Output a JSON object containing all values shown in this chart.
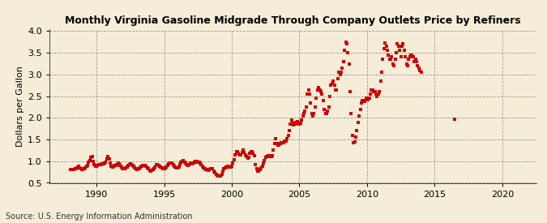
{
  "title": "Monthly Virginia Gasoline Midgrade Through Company Outlets Price by Refiners",
  "ylabel": "Dollars per Gallon",
  "source": "Source: U.S. Energy Information Administration",
  "xlim": [
    1986.5,
    2022.5
  ],
  "ylim": [
    0.5,
    4.05
  ],
  "xticks": [
    1990,
    1995,
    2000,
    2005,
    2010,
    2015,
    2020
  ],
  "yticks": [
    0.5,
    1.0,
    1.5,
    2.0,
    2.5,
    3.0,
    3.5,
    4.0
  ],
  "bg_color": "#f5edd8",
  "marker_color": "#cc0000",
  "data": [
    [
      1988.08,
      0.81
    ],
    [
      1988.17,
      0.8
    ],
    [
      1988.25,
      0.8
    ],
    [
      1988.33,
      0.8
    ],
    [
      1988.42,
      0.82
    ],
    [
      1988.5,
      0.83
    ],
    [
      1988.58,
      0.85
    ],
    [
      1988.67,
      0.88
    ],
    [
      1988.75,
      0.85
    ],
    [
      1988.83,
      0.83
    ],
    [
      1988.92,
      0.8
    ],
    [
      1989.0,
      0.8
    ],
    [
      1989.08,
      0.82
    ],
    [
      1989.17,
      0.84
    ],
    [
      1989.25,
      0.88
    ],
    [
      1989.33,
      0.91
    ],
    [
      1989.42,
      0.97
    ],
    [
      1989.5,
      1.01
    ],
    [
      1989.58,
      1.08
    ],
    [
      1989.67,
      1.1
    ],
    [
      1989.75,
      1.0
    ],
    [
      1989.83,
      0.93
    ],
    [
      1989.92,
      0.88
    ],
    [
      1990.0,
      0.88
    ],
    [
      1990.08,
      0.9
    ],
    [
      1990.17,
      0.92
    ],
    [
      1990.25,
      0.93
    ],
    [
      1990.33,
      0.93
    ],
    [
      1990.42,
      0.94
    ],
    [
      1990.5,
      0.94
    ],
    [
      1990.58,
      0.95
    ],
    [
      1990.67,
      0.98
    ],
    [
      1990.75,
      1.05
    ],
    [
      1990.83,
      1.1
    ],
    [
      1990.92,
      1.05
    ],
    [
      1991.0,
      0.95
    ],
    [
      1991.08,
      0.88
    ],
    [
      1991.17,
      0.87
    ],
    [
      1991.25,
      0.89
    ],
    [
      1991.33,
      0.9
    ],
    [
      1991.42,
      0.91
    ],
    [
      1991.5,
      0.93
    ],
    [
      1991.58,
      0.95
    ],
    [
      1991.67,
      0.94
    ],
    [
      1991.75,
      0.91
    ],
    [
      1991.83,
      0.87
    ],
    [
      1991.92,
      0.83
    ],
    [
      1992.0,
      0.82
    ],
    [
      1992.08,
      0.83
    ],
    [
      1992.17,
      0.84
    ],
    [
      1992.25,
      0.87
    ],
    [
      1992.33,
      0.9
    ],
    [
      1992.42,
      0.93
    ],
    [
      1992.5,
      0.94
    ],
    [
      1992.58,
      0.93
    ],
    [
      1992.67,
      0.91
    ],
    [
      1992.75,
      0.88
    ],
    [
      1992.83,
      0.84
    ],
    [
      1992.92,
      0.82
    ],
    [
      1993.0,
      0.81
    ],
    [
      1993.08,
      0.82
    ],
    [
      1993.17,
      0.83
    ],
    [
      1993.25,
      0.86
    ],
    [
      1993.33,
      0.88
    ],
    [
      1993.42,
      0.9
    ],
    [
      1993.5,
      0.9
    ],
    [
      1993.58,
      0.9
    ],
    [
      1993.67,
      0.88
    ],
    [
      1993.75,
      0.85
    ],
    [
      1993.83,
      0.83
    ],
    [
      1993.92,
      0.79
    ],
    [
      1994.0,
      0.78
    ],
    [
      1994.08,
      0.79
    ],
    [
      1994.17,
      0.81
    ],
    [
      1994.25,
      0.83
    ],
    [
      1994.33,
      0.87
    ],
    [
      1994.42,
      0.92
    ],
    [
      1994.5,
      0.93
    ],
    [
      1994.58,
      0.91
    ],
    [
      1994.67,
      0.89
    ],
    [
      1994.75,
      0.87
    ],
    [
      1994.83,
      0.84
    ],
    [
      1994.92,
      0.82
    ],
    [
      1995.0,
      0.82
    ],
    [
      1995.08,
      0.84
    ],
    [
      1995.17,
      0.87
    ],
    [
      1995.25,
      0.91
    ],
    [
      1995.33,
      0.94
    ],
    [
      1995.42,
      0.96
    ],
    [
      1995.5,
      0.96
    ],
    [
      1995.58,
      0.95
    ],
    [
      1995.67,
      0.93
    ],
    [
      1995.75,
      0.89
    ],
    [
      1995.83,
      0.87
    ],
    [
      1995.92,
      0.84
    ],
    [
      1996.0,
      0.85
    ],
    [
      1996.08,
      0.87
    ],
    [
      1996.17,
      0.92
    ],
    [
      1996.25,
      0.97
    ],
    [
      1996.33,
      1.0
    ],
    [
      1996.42,
      1.01
    ],
    [
      1996.5,
      0.98
    ],
    [
      1996.58,
      0.95
    ],
    [
      1996.67,
      0.93
    ],
    [
      1996.75,
      0.91
    ],
    [
      1996.83,
      0.92
    ],
    [
      1996.92,
      0.95
    ],
    [
      1997.0,
      0.95
    ],
    [
      1997.08,
      0.94
    ],
    [
      1997.17,
      0.96
    ],
    [
      1997.25,
      0.98
    ],
    [
      1997.33,
      0.99
    ],
    [
      1997.42,
      0.99
    ],
    [
      1997.5,
      0.98
    ],
    [
      1997.58,
      0.97
    ],
    [
      1997.67,
      0.96
    ],
    [
      1997.75,
      0.93
    ],
    [
      1997.83,
      0.88
    ],
    [
      1997.92,
      0.84
    ],
    [
      1998.0,
      0.82
    ],
    [
      1998.08,
      0.81
    ],
    [
      1998.17,
      0.8
    ],
    [
      1998.25,
      0.79
    ],
    [
      1998.33,
      0.8
    ],
    [
      1998.42,
      0.82
    ],
    [
      1998.5,
      0.82
    ],
    [
      1998.58,
      0.82
    ],
    [
      1998.67,
      0.78
    ],
    [
      1998.75,
      0.74
    ],
    [
      1998.83,
      0.7
    ],
    [
      1998.92,
      0.67
    ],
    [
      1999.0,
      0.66
    ],
    [
      1999.08,
      0.66
    ],
    [
      1999.17,
      0.66
    ],
    [
      1999.25,
      0.7
    ],
    [
      1999.33,
      0.78
    ],
    [
      1999.42,
      0.82
    ],
    [
      1999.5,
      0.85
    ],
    [
      1999.58,
      0.86
    ],
    [
      1999.67,
      0.88
    ],
    [
      1999.75,
      0.87
    ],
    [
      1999.83,
      0.87
    ],
    [
      1999.92,
      0.87
    ],
    [
      2000.0,
      0.88
    ],
    [
      2000.08,
      0.95
    ],
    [
      2000.17,
      1.03
    ],
    [
      2000.25,
      1.15
    ],
    [
      2000.33,
      1.22
    ],
    [
      2000.42,
      1.22
    ],
    [
      2000.5,
      1.18
    ],
    [
      2000.58,
      1.15
    ],
    [
      2000.67,
      1.14
    ],
    [
      2000.75,
      1.2
    ],
    [
      2000.83,
      1.25
    ],
    [
      2000.92,
      1.2
    ],
    [
      2001.0,
      1.15
    ],
    [
      2001.08,
      1.11
    ],
    [
      2001.17,
      1.07
    ],
    [
      2001.25,
      1.09
    ],
    [
      2001.33,
      1.18
    ],
    [
      2001.42,
      1.22
    ],
    [
      2001.5,
      1.22
    ],
    [
      2001.58,
      1.19
    ],
    [
      2001.67,
      1.12
    ],
    [
      2001.75,
      0.92
    ],
    [
      2001.83,
      0.83
    ],
    [
      2001.92,
      0.78
    ],
    [
      2002.0,
      0.77
    ],
    [
      2002.08,
      0.8
    ],
    [
      2002.17,
      0.84
    ],
    [
      2002.25,
      0.89
    ],
    [
      2002.33,
      0.96
    ],
    [
      2002.42,
      1.02
    ],
    [
      2002.5,
      1.08
    ],
    [
      2002.58,
      1.1
    ],
    [
      2002.67,
      1.13
    ],
    [
      2002.75,
      1.12
    ],
    [
      2002.83,
      1.1
    ],
    [
      2002.92,
      1.1
    ],
    [
      2003.0,
      1.12
    ],
    [
      2003.08,
      1.25
    ],
    [
      2003.17,
      1.4
    ],
    [
      2003.25,
      1.52
    ],
    [
      2003.33,
      1.41
    ],
    [
      2003.42,
      1.37
    ],
    [
      2003.5,
      1.37
    ],
    [
      2003.58,
      1.4
    ],
    [
      2003.67,
      1.42
    ],
    [
      2003.75,
      1.42
    ],
    [
      2003.83,
      1.42
    ],
    [
      2003.92,
      1.46
    ],
    [
      2004.0,
      1.47
    ],
    [
      2004.08,
      1.52
    ],
    [
      2004.17,
      1.6
    ],
    [
      2004.25,
      1.7
    ],
    [
      2004.33,
      1.85
    ],
    [
      2004.42,
      1.95
    ],
    [
      2004.5,
      1.88
    ],
    [
      2004.58,
      1.83
    ],
    [
      2004.67,
      1.85
    ],
    [
      2004.75,
      1.9
    ],
    [
      2004.83,
      1.92
    ],
    [
      2004.92,
      1.88
    ],
    [
      2005.0,
      1.85
    ],
    [
      2005.08,
      1.88
    ],
    [
      2005.17,
      1.95
    ],
    [
      2005.25,
      2.05
    ],
    [
      2005.33,
      2.1
    ],
    [
      2005.42,
      2.15
    ],
    [
      2005.5,
      2.25
    ],
    [
      2005.58,
      2.55
    ],
    [
      2005.67,
      2.65
    ],
    [
      2005.75,
      2.55
    ],
    [
      2005.83,
      2.35
    ],
    [
      2005.92,
      2.1
    ],
    [
      2006.0,
      2.05
    ],
    [
      2006.08,
      2.1
    ],
    [
      2006.17,
      2.25
    ],
    [
      2006.25,
      2.45
    ],
    [
      2006.33,
      2.65
    ],
    [
      2006.42,
      2.7
    ],
    [
      2006.5,
      2.65
    ],
    [
      2006.58,
      2.6
    ],
    [
      2006.67,
      2.55
    ],
    [
      2006.75,
      2.4
    ],
    [
      2006.83,
      2.2
    ],
    [
      2006.92,
      2.1
    ],
    [
      2007.0,
      2.1
    ],
    [
      2007.08,
      2.15
    ],
    [
      2007.17,
      2.25
    ],
    [
      2007.25,
      2.5
    ],
    [
      2007.33,
      2.75
    ],
    [
      2007.42,
      2.8
    ],
    [
      2007.5,
      2.85
    ],
    [
      2007.58,
      2.75
    ],
    [
      2007.67,
      2.65
    ],
    [
      2007.75,
      2.65
    ],
    [
      2007.83,
      2.9
    ],
    [
      2007.92,
      3.05
    ],
    [
      2008.0,
      3.0
    ],
    [
      2008.08,
      3.05
    ],
    [
      2008.17,
      3.15
    ],
    [
      2008.25,
      3.3
    ],
    [
      2008.33,
      3.55
    ],
    [
      2008.42,
      3.75
    ],
    [
      2008.5,
      3.7
    ],
    [
      2008.58,
      3.5
    ],
    [
      2008.67,
      3.25
    ],
    [
      2008.75,
      2.6
    ],
    [
      2008.83,
      2.1
    ],
    [
      2008.92,
      1.6
    ],
    [
      2009.0,
      1.42
    ],
    [
      2009.08,
      1.45
    ],
    [
      2009.17,
      1.55
    ],
    [
      2009.25,
      1.7
    ],
    [
      2009.33,
      1.9
    ],
    [
      2009.42,
      2.05
    ],
    [
      2009.5,
      2.2
    ],
    [
      2009.58,
      2.35
    ],
    [
      2009.67,
      2.4
    ],
    [
      2009.75,
      2.4
    ],
    [
      2009.83,
      2.38
    ],
    [
      2009.92,
      2.45
    ],
    [
      2010.0,
      2.45
    ],
    [
      2010.08,
      2.42
    ],
    [
      2010.17,
      2.45
    ],
    [
      2010.25,
      2.55
    ],
    [
      2010.33,
      2.65
    ],
    [
      2010.42,
      2.65
    ],
    [
      2010.5,
      2.6
    ],
    [
      2010.58,
      2.6
    ],
    [
      2010.67,
      2.55
    ],
    [
      2010.75,
      2.5
    ],
    [
      2010.83,
      2.55
    ],
    [
      2010.92,
      2.6
    ],
    [
      2011.0,
      2.85
    ],
    [
      2011.08,
      3.05
    ],
    [
      2011.17,
      3.35
    ],
    [
      2011.25,
      3.6
    ],
    [
      2011.33,
      3.72
    ],
    [
      2011.42,
      3.65
    ],
    [
      2011.5,
      3.55
    ],
    [
      2011.58,
      3.45
    ],
    [
      2011.67,
      3.35
    ],
    [
      2011.75,
      3.35
    ],
    [
      2011.83,
      3.4
    ],
    [
      2011.92,
      3.25
    ],
    [
      2012.0,
      3.2
    ],
    [
      2012.08,
      3.35
    ],
    [
      2012.17,
      3.5
    ],
    [
      2012.25,
      3.7
    ],
    [
      2012.33,
      3.65
    ],
    [
      2012.42,
      3.55
    ],
    [
      2012.5,
      3.4
    ],
    [
      2012.58,
      3.65
    ],
    [
      2012.67,
      3.7
    ],
    [
      2012.75,
      3.55
    ],
    [
      2012.83,
      3.4
    ],
    [
      2012.92,
      3.25
    ],
    [
      2013.0,
      3.2
    ],
    [
      2013.08,
      3.35
    ],
    [
      2013.17,
      3.4
    ],
    [
      2013.25,
      3.45
    ],
    [
      2013.33,
      3.45
    ],
    [
      2013.42,
      3.4
    ],
    [
      2013.5,
      3.3
    ],
    [
      2013.58,
      3.35
    ],
    [
      2013.67,
      3.3
    ],
    [
      2013.75,
      3.2
    ],
    [
      2013.83,
      3.15
    ],
    [
      2013.92,
      3.1
    ],
    [
      2014.0,
      3.05
    ],
    [
      2016.5,
      1.97
    ]
  ]
}
